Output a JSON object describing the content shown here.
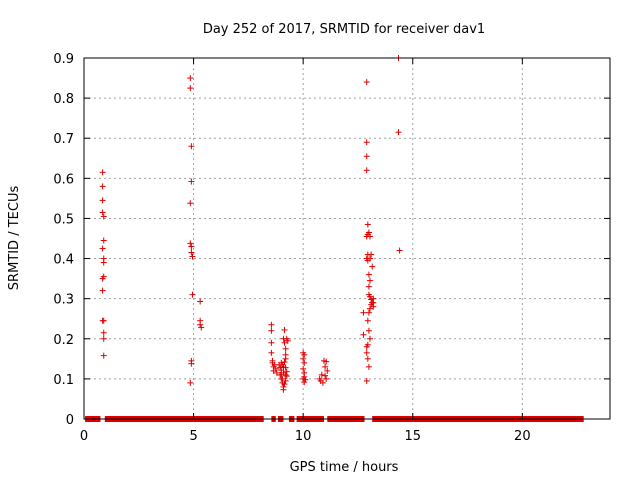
{
  "chart_data": {
    "type": "scatter",
    "title": "Day 252 of 2017, SRMTID for receiver dav1",
    "xlabel": "GPS time / hours",
    "ylabel": "SRMTID / TECUs",
    "xlim": [
      0,
      24
    ],
    "ylim": [
      0,
      0.9
    ],
    "xticks": [
      "0",
      "5",
      "10",
      "15",
      "20"
    ],
    "yticks": [
      "0",
      "0.1",
      "0.2",
      "0.3",
      "0.4",
      "0.5",
      "0.6",
      "0.7",
      "0.8",
      "0.9"
    ],
    "grid": true,
    "marker": "plus",
    "color": "#e00000",
    "zero_segments": [
      [
        0.05,
        0.75
      ],
      [
        0.95,
        8.2
      ],
      [
        8.55,
        8.75
      ],
      [
        8.85,
        9.1
      ],
      [
        9.35,
        9.6
      ],
      [
        9.7,
        10.95
      ],
      [
        11.1,
        12.8
      ],
      [
        13.15,
        22.8
      ]
    ],
    "points": [
      [
        0.85,
        0.615
      ],
      [
        0.85,
        0.58
      ],
      [
        0.85,
        0.545
      ],
      [
        0.85,
        0.515
      ],
      [
        0.9,
        0.505
      ],
      [
        0.9,
        0.445
      ],
      [
        0.85,
        0.425
      ],
      [
        0.9,
        0.4
      ],
      [
        0.9,
        0.39
      ],
      [
        0.9,
        0.355
      ],
      [
        0.85,
        0.35
      ],
      [
        0.85,
        0.32
      ],
      [
        0.85,
        0.245
      ],
      [
        0.9,
        0.245
      ],
      [
        0.9,
        0.215
      ],
      [
        0.9,
        0.2
      ],
      [
        0.9,
        0.158
      ],
      [
        4.85,
        0.85
      ],
      [
        4.85,
        0.825
      ],
      [
        4.9,
        0.68
      ],
      [
        4.9,
        0.592
      ],
      [
        4.85,
        0.538
      ],
      [
        4.85,
        0.438
      ],
      [
        4.9,
        0.43
      ],
      [
        4.9,
        0.415
      ],
      [
        4.95,
        0.405
      ],
      [
        4.95,
        0.31
      ],
      [
        4.9,
        0.145
      ],
      [
        4.9,
        0.138
      ],
      [
        4.85,
        0.09
      ],
      [
        5.3,
        0.293
      ],
      [
        5.3,
        0.245
      ],
      [
        5.3,
        0.235
      ],
      [
        5.35,
        0.228
      ],
      [
        8.55,
        0.235
      ],
      [
        8.55,
        0.22
      ],
      [
        8.55,
        0.19
      ],
      [
        8.55,
        0.165
      ],
      [
        8.6,
        0.145
      ],
      [
        8.6,
        0.14
      ],
      [
        8.65,
        0.13
      ],
      [
        8.65,
        0.12
      ],
      [
        8.7,
        0.135
      ],
      [
        8.75,
        0.125
      ],
      [
        8.8,
        0.115
      ],
      [
        8.9,
        0.135
      ],
      [
        8.95,
        0.128
      ],
      [
        9.0,
        0.122
      ],
      [
        9.0,
        0.11
      ],
      [
        9.05,
        0.1
      ],
      [
        9.05,
        0.09
      ],
      [
        9.1,
        0.08
      ],
      [
        9.1,
        0.073
      ],
      [
        9.0,
        0.14
      ],
      [
        9.05,
        0.135
      ],
      [
        9.1,
        0.13
      ],
      [
        9.1,
        0.2
      ],
      [
        9.15,
        0.222
      ],
      [
        9.15,
        0.19
      ],
      [
        9.2,
        0.175
      ],
      [
        9.2,
        0.16
      ],
      [
        9.2,
        0.15
      ],
      [
        9.15,
        0.142
      ],
      [
        9.2,
        0.128
      ],
      [
        9.25,
        0.118
      ],
      [
        9.25,
        0.107
      ],
      [
        9.2,
        0.095
      ],
      [
        9.15,
        0.087
      ],
      [
        9.25,
        0.2
      ],
      [
        9.3,
        0.195
      ],
      [
        9.0,
        0.1
      ],
      [
        9.1,
        0.115
      ],
      [
        8.95,
        0.11
      ],
      [
        9.2,
        0.11
      ],
      [
        10.0,
        0.165
      ],
      [
        10.05,
        0.16
      ],
      [
        10.0,
        0.15
      ],
      [
        10.05,
        0.14
      ],
      [
        10.0,
        0.125
      ],
      [
        10.05,
        0.115
      ],
      [
        10.05,
        0.105
      ],
      [
        10.0,
        0.1
      ],
      [
        10.1,
        0.098
      ],
      [
        10.05,
        0.092
      ],
      [
        10.75,
        0.1
      ],
      [
        10.8,
        0.095
      ],
      [
        10.85,
        0.11
      ],
      [
        10.9,
        0.09
      ],
      [
        10.95,
        0.145
      ],
      [
        11.05,
        0.143
      ],
      [
        11.0,
        0.13
      ],
      [
        11.1,
        0.12
      ],
      [
        11.0,
        0.108
      ],
      [
        11.05,
        0.1
      ],
      [
        12.75,
        0.265
      ],
      [
        12.75,
        0.21
      ],
      [
        12.9,
        0.84
      ],
      [
        12.9,
        0.69
      ],
      [
        12.9,
        0.655
      ],
      [
        12.9,
        0.62
      ],
      [
        12.95,
        0.485
      ],
      [
        12.95,
        0.46
      ],
      [
        12.9,
        0.455
      ],
      [
        13.0,
        0.465
      ],
      [
        13.05,
        0.455
      ],
      [
        12.95,
        0.41
      ],
      [
        12.9,
        0.4
      ],
      [
        12.95,
        0.395
      ],
      [
        13.05,
        0.4
      ],
      [
        13.1,
        0.41
      ],
      [
        13.15,
        0.38
      ],
      [
        13.0,
        0.36
      ],
      [
        13.05,
        0.345
      ],
      [
        13.0,
        0.33
      ],
      [
        13.0,
        0.31
      ],
      [
        13.05,
        0.305
      ],
      [
        13.1,
        0.298
      ],
      [
        13.15,
        0.29
      ],
      [
        13.2,
        0.28
      ],
      [
        13.1,
        0.285
      ],
      [
        13.05,
        0.275
      ],
      [
        13.0,
        0.265
      ],
      [
        12.95,
        0.245
      ],
      [
        13.0,
        0.22
      ],
      [
        13.05,
        0.2
      ],
      [
        12.95,
        0.185
      ],
      [
        12.9,
        0.18
      ],
      [
        12.9,
        0.165
      ],
      [
        12.95,
        0.15
      ],
      [
        13.0,
        0.13
      ],
      [
        12.9,
        0.095
      ],
      [
        13.2,
        0.29
      ],
      [
        13.2,
        0.3
      ],
      [
        13.15,
        0.29
      ],
      [
        14.35,
        0.9
      ],
      [
        14.35,
        0.715
      ],
      [
        14.4,
        0.42
      ]
    ]
  }
}
